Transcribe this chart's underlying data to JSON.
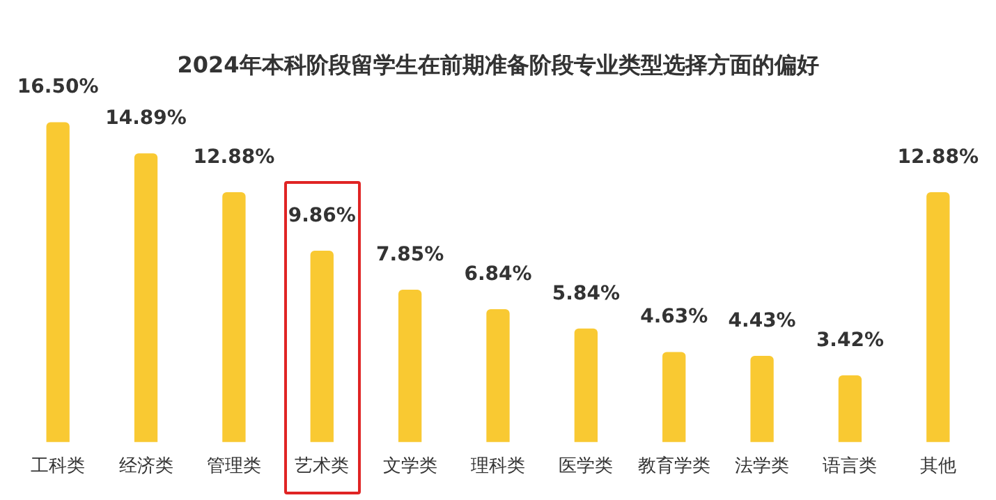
{
  "chart_data": {
    "type": "bar",
    "title": "2024年本科阶段留学生在前期准备阶段专业类型选择方面的偏好",
    "categories": [
      "工科类",
      "经济类",
      "管理类",
      "艺术类",
      "文学类",
      "理科类",
      "医学类",
      "教育学类",
      "法学类",
      "语言类",
      "其他"
    ],
    "values": [
      16.5,
      14.89,
      12.88,
      9.86,
      7.85,
      6.84,
      5.84,
      4.63,
      4.43,
      3.42,
      12.88
    ],
    "value_labels": [
      "16.50%",
      "14.89%",
      "12.88%",
      "9.86%",
      "7.85%",
      "6.84%",
      "5.84%",
      "4.63%",
      "4.43%",
      "3.42%",
      "12.88%"
    ],
    "color": "#f9c932",
    "grid": false,
    "legend": false
  }
}
